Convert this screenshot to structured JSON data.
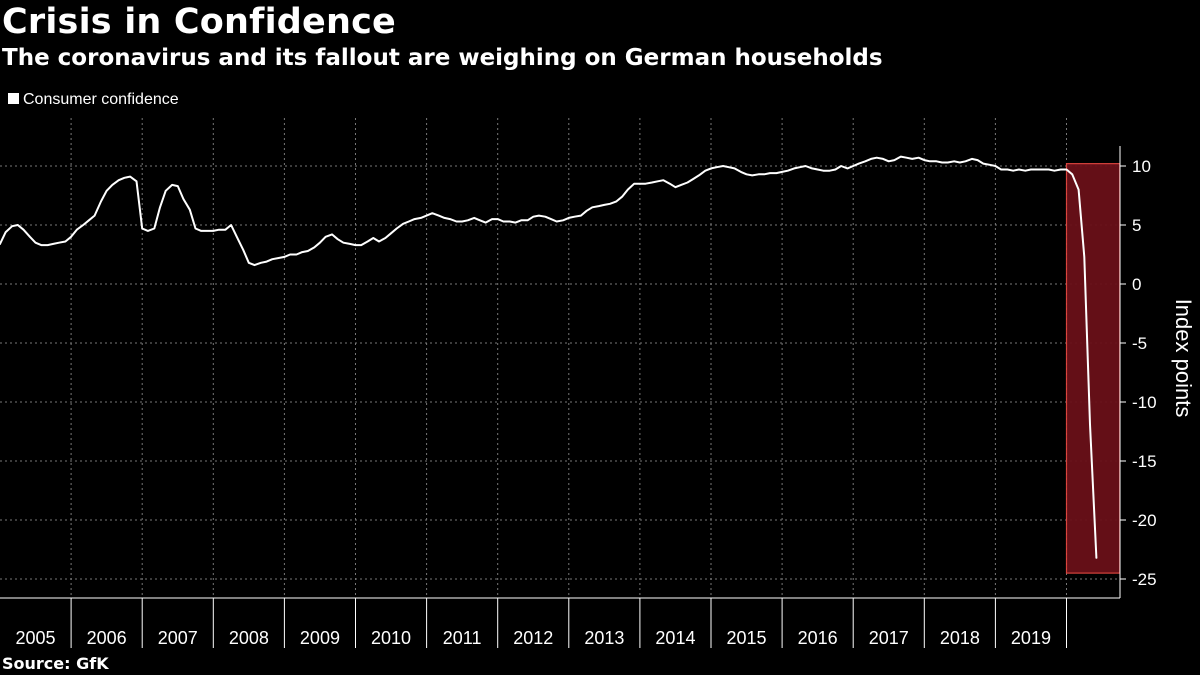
{
  "title": "Crisis in Confidence",
  "subtitle": "The coronavirus and its fallout are weighing on German households",
  "source": "Source: GfK",
  "colors": {
    "background": "#000000",
    "line": "#ffffff",
    "highlight_fill": "#6a1019",
    "highlight_border": "#e2463f"
  },
  "chart_data": {
    "type": "line",
    "title": "Crisis in Confidence",
    "subtitle": "The coronavirus and its fallout are weighing on German households",
    "ylabel": "Index points",
    "xlabel": "",
    "xlim": [
      2005.0,
      2020.45
    ],
    "ylim": [
      -27,
      14
    ],
    "y_axis_side": "right",
    "yticks": [
      10,
      5,
      0,
      -5,
      -10,
      -15,
      -20,
      -25
    ],
    "ytick_labels": [
      "10",
      "5",
      "0",
      "-5",
      "-10",
      "-15",
      "-20",
      "-25"
    ],
    "xtick_labels": [
      "2005",
      "2006",
      "2007",
      "2008",
      "2009",
      "2010",
      "2011",
      "2012",
      "2013",
      "2014",
      "2015",
      "2016",
      "2017",
      "2018",
      "2019"
    ],
    "grid": true,
    "legend": {
      "position": "top-left",
      "entries": [
        "Consumer confidence"
      ]
    },
    "highlight": {
      "x_start": 2020.0,
      "x_end": 2020.75,
      "y_min": -24.5,
      "y_max": 10.2
    },
    "series": [
      {
        "name": "Consumer confidence",
        "x": [
          2005.0,
          2005.08,
          2005.17,
          2005.25,
          2005.33,
          2005.42,
          2005.5,
          2005.58,
          2005.67,
          2005.75,
          2005.83,
          2005.92,
          2006.0,
          2006.08,
          2006.17,
          2006.25,
          2006.33,
          2006.42,
          2006.5,
          2006.58,
          2006.67,
          2006.75,
          2006.83,
          2006.92,
          2007.0,
          2007.08,
          2007.17,
          2007.25,
          2007.33,
          2007.42,
          2007.5,
          2007.58,
          2007.67,
          2007.75,
          2007.83,
          2007.92,
          2008.0,
          2008.08,
          2008.17,
          2008.25,
          2008.33,
          2008.42,
          2008.5,
          2008.58,
          2008.67,
          2008.75,
          2008.83,
          2008.92,
          2009.0,
          2009.08,
          2009.17,
          2009.25,
          2009.33,
          2009.42,
          2009.5,
          2009.58,
          2009.67,
          2009.75,
          2009.83,
          2009.92,
          2010.0,
          2010.08,
          2010.17,
          2010.25,
          2010.33,
          2010.42,
          2010.5,
          2010.58,
          2010.67,
          2010.75,
          2010.83,
          2010.92,
          2011.0,
          2011.08,
          2011.17,
          2011.25,
          2011.33,
          2011.42,
          2011.5,
          2011.58,
          2011.67,
          2011.75,
          2011.83,
          2011.92,
          2012.0,
          2012.08,
          2012.17,
          2012.25,
          2012.33,
          2012.42,
          2012.5,
          2012.58,
          2012.67,
          2012.75,
          2012.83,
          2012.92,
          2013.0,
          2013.08,
          2013.17,
          2013.25,
          2013.33,
          2013.42,
          2013.5,
          2013.58,
          2013.67,
          2013.75,
          2013.83,
          2013.92,
          2014.0,
          2014.08,
          2014.17,
          2014.25,
          2014.33,
          2014.42,
          2014.5,
          2014.58,
          2014.67,
          2014.75,
          2014.83,
          2014.92,
          2015.0,
          2015.08,
          2015.17,
          2015.25,
          2015.33,
          2015.42,
          2015.5,
          2015.58,
          2015.67,
          2015.75,
          2015.83,
          2015.92,
          2016.0,
          2016.08,
          2016.17,
          2016.25,
          2016.33,
          2016.42,
          2016.5,
          2016.58,
          2016.67,
          2016.75,
          2016.83,
          2016.92,
          2017.0,
          2017.08,
          2017.17,
          2017.25,
          2017.33,
          2017.42,
          2017.5,
          2017.58,
          2017.67,
          2017.75,
          2017.83,
          2017.92,
          2018.0,
          2018.08,
          2018.17,
          2018.25,
          2018.33,
          2018.42,
          2018.5,
          2018.58,
          2018.67,
          2018.75,
          2018.83,
          2018.92,
          2019.0,
          2019.08,
          2019.17,
          2019.25,
          2019.33,
          2019.42,
          2019.5,
          2019.58,
          2019.67,
          2019.75,
          2019.83,
          2019.92,
          2020.0,
          2020.08,
          2020.17,
          2020.25,
          2020.33,
          2020.42
        ],
        "values": [
          3.4,
          4.4,
          4.9,
          5.0,
          4.6,
          4.0,
          3.5,
          3.3,
          3.3,
          3.4,
          3.5,
          3.6,
          4.0,
          4.6,
          5.0,
          5.4,
          5.8,
          7.0,
          7.9,
          8.4,
          8.8,
          9.0,
          9.1,
          8.7,
          4.7,
          4.5,
          4.7,
          6.5,
          7.9,
          8.4,
          8.3,
          7.2,
          6.3,
          4.7,
          4.5,
          4.5,
          4.5,
          4.6,
          4.6,
          5.0,
          4.0,
          2.9,
          1.8,
          1.6,
          1.8,
          1.9,
          2.1,
          2.2,
          2.3,
          2.5,
          2.5,
          2.7,
          2.8,
          3.1,
          3.5,
          4.0,
          4.2,
          3.8,
          3.5,
          3.4,
          3.3,
          3.3,
          3.6,
          3.9,
          3.6,
          3.9,
          4.3,
          4.7,
          5.1,
          5.3,
          5.5,
          5.6,
          5.8,
          6.0,
          5.8,
          5.6,
          5.5,
          5.3,
          5.3,
          5.4,
          5.6,
          5.4,
          5.2,
          5.5,
          5.5,
          5.3,
          5.3,
          5.2,
          5.4,
          5.4,
          5.7,
          5.8,
          5.7,
          5.5,
          5.3,
          5.4,
          5.6,
          5.7,
          5.8,
          6.2,
          6.5,
          6.6,
          6.7,
          6.8,
          7.0,
          7.4,
          8.0,
          8.5,
          8.5,
          8.5,
          8.6,
          8.7,
          8.8,
          8.5,
          8.2,
          8.4,
          8.6,
          8.9,
          9.2,
          9.6,
          9.8,
          9.9,
          10.0,
          9.9,
          9.8,
          9.5,
          9.3,
          9.2,
          9.3,
          9.3,
          9.4,
          9.4,
          9.5,
          9.6,
          9.8,
          9.9,
          10.0,
          9.8,
          9.7,
          9.6,
          9.6,
          9.7,
          10.0,
          9.8,
          10.0,
          10.2,
          10.4,
          10.6,
          10.7,
          10.6,
          10.4,
          10.5,
          10.8,
          10.7,
          10.6,
          10.7,
          10.5,
          10.4,
          10.4,
          10.3,
          10.3,
          10.4,
          10.3,
          10.4,
          10.6,
          10.5,
          10.2,
          10.1,
          10.0,
          9.7,
          9.7,
          9.6,
          9.7,
          9.6,
          9.7,
          9.7,
          9.7,
          9.7,
          9.6,
          9.7,
          9.7,
          9.3,
          8.0,
          2.3,
          -11.9,
          -23.2
        ]
      }
    ]
  }
}
